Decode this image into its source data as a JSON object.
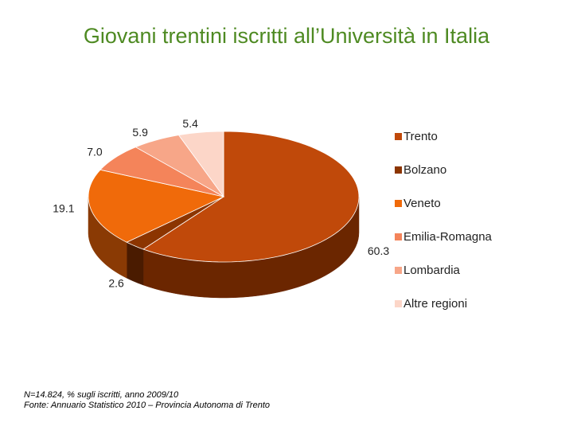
{
  "slide": {
    "title": "Giovani trentini iscritti all’Università in Italia"
  },
  "footnote": {
    "line1": "N=14.824, % sugli iscritti, anno 2009/10",
    "line2": "Fonte: Annuario Statistico 2010 – Provincia Autonoma di Trento"
  },
  "chart_data": {
    "type": "pie",
    "style": "3d",
    "title": "",
    "legend_position": "right",
    "slices": [
      {
        "name": "Trento",
        "value": 60.3,
        "label": "60.3",
        "color": "#c0490a",
        "side_color": "#6b2600"
      },
      {
        "name": "Bolzano",
        "value": 2.6,
        "label": "2.6",
        "color": "#8c3500",
        "side_color": "#4a1b00"
      },
      {
        "name": "Veneto",
        "value": 19.1,
        "label": "19.1",
        "color": "#f06a0a",
        "side_color": "#8a3a04"
      },
      {
        "name": "Emilia-Romagna",
        "value": 7.0,
        "label": "7.0",
        "color": "#f4845a",
        "side_color": "#9a4a2c"
      },
      {
        "name": "Lombardia",
        "value": 5.9,
        "label": "5.9",
        "color": "#f7a688",
        "side_color": "#a0604a"
      },
      {
        "name": "Altre regioni",
        "value": 5.4,
        "label": "5.4",
        "color": "#fcd6c8",
        "side_color": "#b08a7c"
      }
    ]
  }
}
